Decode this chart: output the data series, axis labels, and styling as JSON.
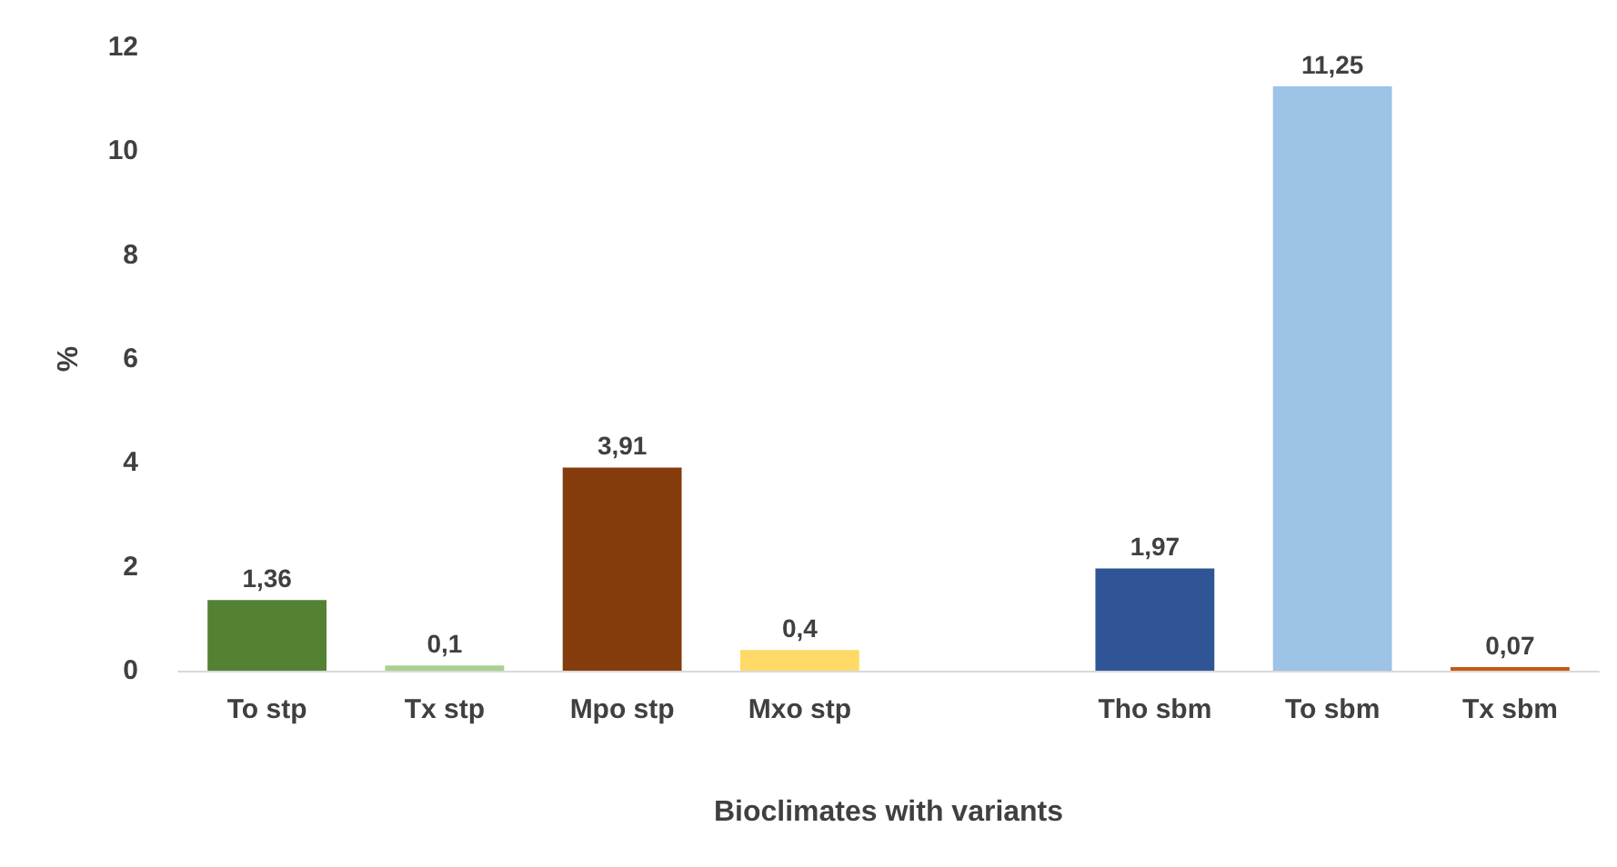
{
  "chart_data": {
    "type": "bar",
    "xlabel": "Bioclimates with variants",
    "ylabel": "%",
    "categories": [
      "To stp",
      "Tx stp",
      "Mpo stp",
      "Mxo stp",
      null,
      "Tho sbm",
      "To sbm",
      "Tx sbm"
    ],
    "values": [
      1.36,
      0.1,
      3.91,
      0.4,
      null,
      1.97,
      11.25,
      0.07
    ],
    "colors": [
      "#548235",
      "#a9d18e",
      "#843c0c",
      "#ffd966",
      null,
      "#2f5597",
      "#9dc3e6",
      "#c55a11"
    ],
    "value_labels": [
      "1,36",
      "0,1",
      "3,91",
      "0,4",
      null,
      "1,97",
      "11,25",
      "0,07"
    ],
    "ylim": [
      0,
      12
    ],
    "yticks": [
      0,
      2,
      4,
      6,
      8,
      10,
      12
    ],
    "grid": false
  }
}
